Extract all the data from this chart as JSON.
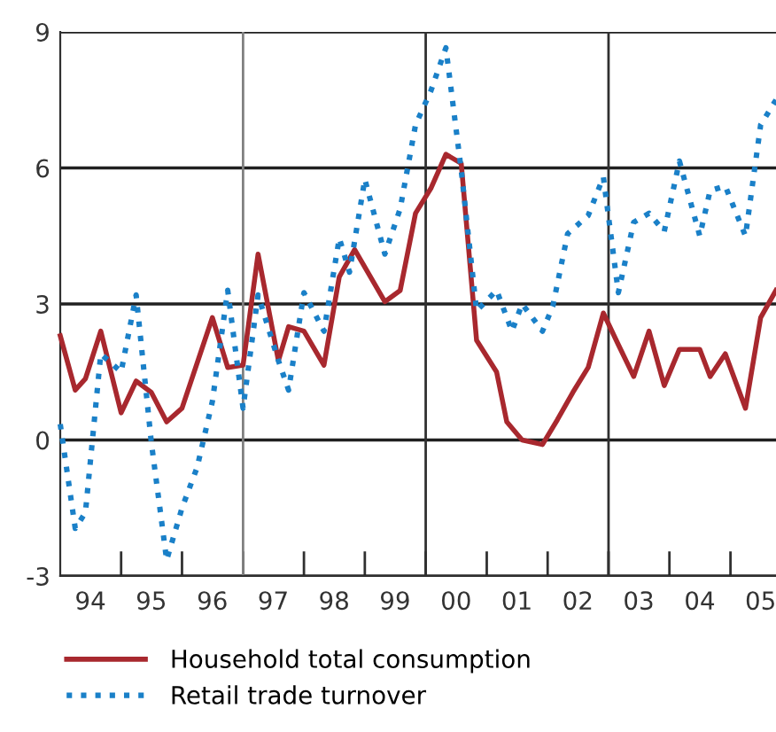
{
  "chart_data": {
    "type": "line",
    "xlim": [
      "1994-01",
      "2005-10"
    ],
    "ylim": [
      -3,
      9
    ],
    "yticks": [
      -3,
      0,
      3,
      6,
      9
    ],
    "xticks": [
      {
        "value": "1995-01",
        "label": null
      },
      {
        "value": "1996-01",
        "label": null
      },
      {
        "value": "1997-01",
        "label": null
      },
      {
        "value": "1998-01",
        "label": null
      },
      {
        "value": "1999-01",
        "label": null
      },
      {
        "value": "2000-01",
        "label": null
      },
      {
        "value": "2001-01",
        "label": null
      },
      {
        "value": "2002-01",
        "label": null
      },
      {
        "value": "2003-01",
        "label": null
      },
      {
        "value": "2004-01",
        "label": null
      },
      {
        "value": "2005-01",
        "label": null
      },
      {
        "value": "1994-07",
        "label": "94"
      },
      {
        "value": "1995-07",
        "label": "95"
      },
      {
        "value": "1996-07",
        "label": "96"
      },
      {
        "value": "1997-07",
        "label": "97"
      },
      {
        "value": "1998-07",
        "label": "98"
      },
      {
        "value": "1999-07",
        "label": "99"
      },
      {
        "value": "2000-07",
        "label": "00"
      },
      {
        "value": "2001-07",
        "label": "01"
      },
      {
        "value": "2002-07",
        "label": "02"
      },
      {
        "value": "2003-07",
        "label": "03"
      },
      {
        "value": "2004-07",
        "label": "04"
      },
      {
        "value": "2005-07",
        "label": "05"
      }
    ],
    "grid": "y",
    "legend": "bottom",
    "ref_lines": [
      {
        "axis": "x",
        "value": "1997-01",
        "color": "#808080"
      },
      {
        "axis": "x",
        "value": "2000-01",
        "color": "#303030"
      },
      {
        "axis": "x",
        "value": "2003-01",
        "color": "#303030"
      }
    ],
    "series": [
      {
        "name": "Household total consumption",
        "color": "#a8282e",
        "line_style": "solid",
        "x": [
          "1994-01",
          "1994-04",
          "1994-06",
          "1994-09",
          "1995-01",
          "1995-04",
          "1995-07",
          "1995-10",
          "1996-01",
          "1996-07",
          "1996-10",
          "1997-01",
          "1997-04",
          "1997-08",
          "1997-10",
          "1998-01",
          "1998-05",
          "1998-08",
          "1998-11",
          "1999-05",
          "1999-08",
          "1999-11",
          "2000-02",
          "2000-05",
          "2000-08",
          "2000-11",
          "2001-03",
          "2001-05",
          "2001-08",
          "2001-12",
          "2002-03",
          "2002-06",
          "2002-09",
          "2002-12",
          "2003-03",
          "2003-06",
          "2003-09",
          "2003-12",
          "2004-03",
          "2004-07",
          "2004-09",
          "2004-12",
          "2005-04",
          "2005-07",
          "2005-10"
        ],
        "values": [
          2.3,
          1.1,
          1.35,
          2.4,
          0.6,
          1.3,
          1.05,
          0.4,
          0.7,
          2.7,
          1.6,
          1.65,
          4.1,
          1.75,
          2.5,
          2.4,
          1.65,
          3.6,
          4.2,
          3.05,
          3.3,
          5.0,
          5.55,
          6.3,
          6.1,
          2.2,
          1.5,
          0.4,
          0.0,
          -0.1,
          0.45,
          1.05,
          1.6,
          2.8,
          2.1,
          1.4,
          2.4,
          1.2,
          2.0,
          2.0,
          1.4,
          1.9,
          0.7,
          2.7,
          3.3
        ]
      },
      {
        "name": "Retail trade turnover",
        "color": "#1a80c8",
        "line_style": "dotted",
        "x": [
          "1994-01",
          "1994-04",
          "1994-06",
          "1994-09",
          "1995-01",
          "1995-04",
          "1995-07",
          "1995-10",
          "1996-01",
          "1996-04",
          "1996-07",
          "1996-10",
          "1997-01",
          "1997-04",
          "1997-08",
          "1997-10",
          "1998-01",
          "1998-05",
          "1998-08",
          "1998-10",
          "1999-01",
          "1999-05",
          "1999-08",
          "1999-11",
          "2000-02",
          "2000-05",
          "2000-08",
          "2000-11",
          "2001-03",
          "2001-06",
          "2001-08",
          "2001-12",
          "2002-02",
          "2002-05",
          "2002-09",
          "2002-12",
          "2003-03",
          "2003-06",
          "2003-09",
          "2003-12",
          "2004-03",
          "2004-07",
          "2004-09",
          "2004-12",
          "2005-04",
          "2005-07",
          "2005-10"
        ],
        "values": [
          0.35,
          -1.95,
          -1.6,
          1.9,
          1.5,
          3.2,
          -0.05,
          -2.65,
          -1.5,
          -0.6,
          0.85,
          3.3,
          0.7,
          3.2,
          1.75,
          1.1,
          3.25,
          2.4,
          4.45,
          3.7,
          5.75,
          4.1,
          5.1,
          6.95,
          7.7,
          8.65,
          5.95,
          2.85,
          3.3,
          2.4,
          3.0,
          2.4,
          2.95,
          4.55,
          4.95,
          5.8,
          3.25,
          4.8,
          5.0,
          4.6,
          6.15,
          4.5,
          5.5,
          5.6,
          4.5,
          6.95,
          7.5
        ]
      }
    ]
  }
}
